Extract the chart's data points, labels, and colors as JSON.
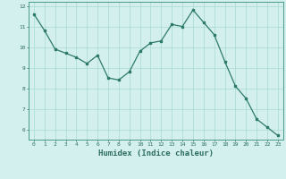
{
  "x": [
    0,
    1,
    2,
    3,
    4,
    5,
    6,
    7,
    8,
    9,
    10,
    11,
    12,
    13,
    14,
    15,
    16,
    17,
    18,
    19,
    20,
    21,
    22,
    23
  ],
  "y": [
    11.6,
    10.8,
    9.9,
    9.7,
    9.5,
    9.2,
    9.6,
    8.5,
    8.4,
    8.8,
    9.8,
    10.2,
    10.3,
    11.1,
    11.0,
    11.8,
    11.2,
    10.6,
    9.3,
    8.1,
    7.5,
    6.5,
    6.1,
    5.7
  ],
  "xlim": [
    -0.5,
    23.5
  ],
  "ylim": [
    5.5,
    12.2
  ],
  "yticks": [
    6,
    7,
    8,
    9,
    10,
    11,
    12
  ],
  "xticks": [
    0,
    1,
    2,
    3,
    4,
    5,
    6,
    7,
    8,
    9,
    10,
    11,
    12,
    13,
    14,
    15,
    16,
    17,
    18,
    19,
    20,
    21,
    22,
    23
  ],
  "xlabel": "Humidex (Indice chaleur)",
  "line_color": "#2d7a6a",
  "marker_color": "#2d7a6a",
  "bg_color": "#d4f0ee",
  "grid_color": "#a8d8d0",
  "axis_color": "#4a9a8a",
  "text_color": "#2d6e5e",
  "tick_fontsize": 4.5,
  "xlabel_fontsize": 6.5
}
